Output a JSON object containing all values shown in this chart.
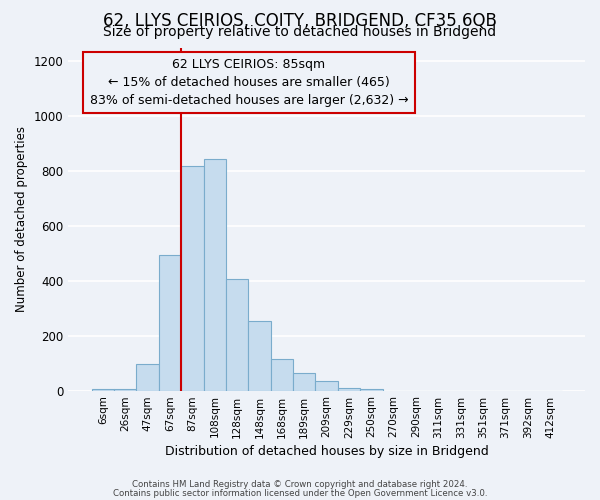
{
  "title": "62, LLYS CEIRIOS, COITY, BRIDGEND, CF35 6QB",
  "subtitle": "Size of property relative to detached houses in Bridgend",
  "xlabel": "Distribution of detached houses by size in Bridgend",
  "ylabel": "Number of detached properties",
  "footnote1": "Contains HM Land Registry data © Crown copyright and database right 2024.",
  "footnote2": "Contains public sector information licensed under the Open Government Licence v3.0.",
  "bar_labels": [
    "6sqm",
    "26sqm",
    "47sqm",
    "67sqm",
    "87sqm",
    "108sqm",
    "128sqm",
    "148sqm",
    "168sqm",
    "189sqm",
    "209sqm",
    "229sqm",
    "250sqm",
    "270sqm",
    "290sqm",
    "311sqm",
    "331sqm",
    "351sqm",
    "371sqm",
    "392sqm",
    "412sqm"
  ],
  "bar_values": [
    5,
    5,
    95,
    495,
    820,
    845,
    405,
    255,
    115,
    65,
    35,
    10,
    5,
    0,
    0,
    0,
    0,
    0,
    0,
    0,
    0
  ],
  "bar_color": "#c6dcee",
  "bar_edge_color": "#7aaccc",
  "highlight_bar_index": 4,
  "highlight_color": "#cc0000",
  "annotation_title": "62 LLYS CEIRIOS: 85sqm",
  "annotation_line1": "← 15% of detached houses are smaller (465)",
  "annotation_line2": "83% of semi-detached houses are larger (2,632) →",
  "annotation_box_color": "#cc0000",
  "ylim": [
    0,
    1250
  ],
  "yticks": [
    0,
    200,
    400,
    600,
    800,
    1000,
    1200
  ],
  "background_color": "#eef2f8",
  "grid_color": "#ffffff",
  "title_fontsize": 12,
  "subtitle_fontsize": 10,
  "ann_fontsize": 9
}
